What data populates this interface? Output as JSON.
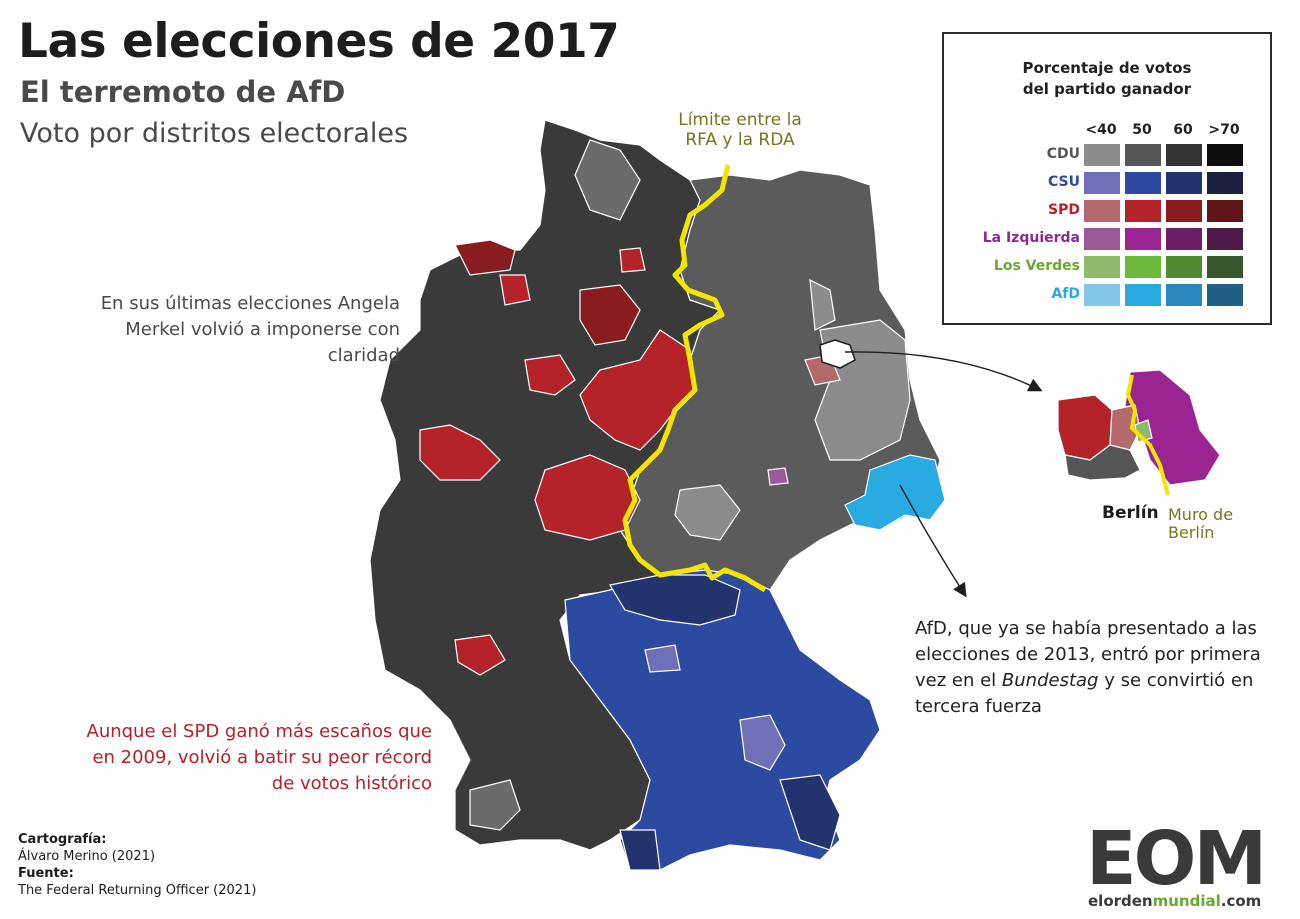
{
  "header": {
    "title": "Las elecciones de 2017",
    "subtitle": "El terremoto de AfD",
    "subtitle2": "Voto por distritos electorales"
  },
  "legend": {
    "title": "Porcentaje de votos\ndel partido ganador",
    "columns": [
      "<40",
      "50",
      "60",
      ">70"
    ],
    "parties": [
      {
        "name": "CDU",
        "label_color": "#555555",
        "colors": [
          "#8c8c8c",
          "#555555",
          "#333333",
          "#0d0d0d"
        ]
      },
      {
        "name": "CSU",
        "label_color": "#2b4aa0",
        "colors": [
          "#6f71b8",
          "#2c4aa0",
          "#22336e",
          "#1b1f40"
        ]
      },
      {
        "name": "SPD",
        "label_color": "#b5202a",
        "colors": [
          "#b46a6a",
          "#b5232a",
          "#8a1c20",
          "#5e1518"
        ]
      },
      {
        "name": "La Izquierda",
        "label_color": "#8c2a8c",
        "colors": [
          "#9a5a9a",
          "#9a2492",
          "#6d1e68",
          "#4e1a48"
        ]
      },
      {
        "name": "Los Verdes",
        "label_color": "#6aa82e",
        "colors": [
          "#8fba6a",
          "#6bb83a",
          "#4f8a30",
          "#34582a"
        ]
      },
      {
        "name": "AfD",
        "label_color": "#2aa8e0",
        "colors": [
          "#84c6e8",
          "#29abe2",
          "#2a88bd",
          "#225f84"
        ]
      }
    ]
  },
  "annotations": {
    "limit": "Límite entre la\nRFA y la RDA",
    "merkel": "En sus últimas elecciones Angela Merkel volvió a imponerse con claridad",
    "spd": "Aunque el SPD ganó más escaños que en 2009, volvió a batir su peor récord de votos histórico",
    "afd_pre": "AfD, que ya se había presentado a las elecciones de 2013, entró por primera vez en el ",
    "afd_em": "Bundestag",
    "afd_post": " y se convirtió en tercera fuerza",
    "berlin": "Berlín",
    "muro": "Muro de\nBerlín"
  },
  "credits": {
    "carto_label": "Cartografía:",
    "carto_value": "Álvaro Merino (2021)",
    "source_label": "Fuente:",
    "source_value": "The Federal Returning Officer (2021)"
  },
  "logo": {
    "letters": "EOM",
    "url_a": "elorden",
    "url_b": "mundial",
    "url_c": ".com"
  },
  "colors": {
    "border_line": "#f2e600",
    "annotation_olive": "#7a7320",
    "spd_red": "#b5202a"
  }
}
